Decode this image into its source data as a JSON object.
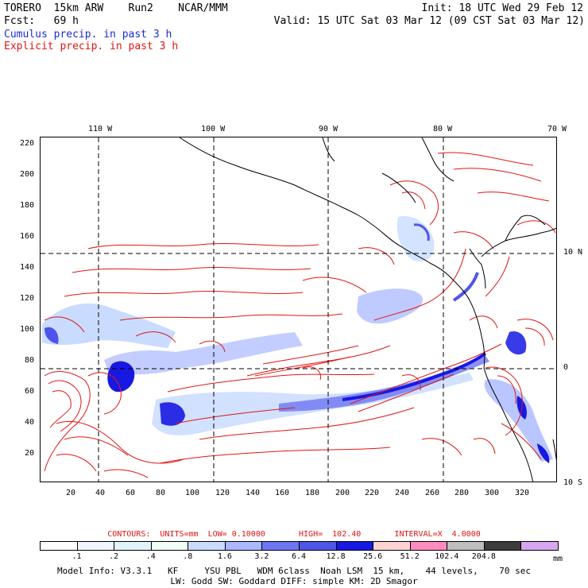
{
  "header": {
    "model": "TORERO  15km ARW    Run2    NCAR/MMM",
    "init": "Init: 18 UTC Wed 29 Feb 12",
    "fcst": "Fcst:   69 h",
    "valid": "Valid: 15 UTC Sat 03 Mar 12 (09 CST Sat 03 Mar 12)",
    "cumulus_label": "Cumulus precip. in past 3 h",
    "explicit_label": "Explicit precip. in past 3 h"
  },
  "colors": {
    "cumulus": "#1d2bd8",
    "explicit": "#e01616",
    "grid": "#000000"
  },
  "axes": {
    "top_lon_labels": [
      "110 W",
      "100 W",
      "90 W",
      "80 W",
      "70 W"
    ],
    "right_lat_labels": [
      "10 N",
      "0",
      "10 S"
    ],
    "left_y_ticks": [
      "220",
      "200",
      "180",
      "160",
      "140",
      "120",
      "100",
      "80",
      "60",
      "40",
      "20"
    ],
    "bottom_x_ticks": [
      "20",
      "40",
      "60",
      "80",
      "100",
      "120",
      "140",
      "160",
      "180",
      "200",
      "220",
      "240",
      "260",
      "280",
      "300",
      "320"
    ]
  },
  "contour_info": "CONTOURS:  UNITS=mm  LOW= 0.10000       HIGH=  102.40       INTERVAL=X  4.0000",
  "scale": {
    "labels": [
      ".1",
      ".2",
      ".4",
      ".8",
      "1.6",
      "3.2",
      "6.4",
      "12.8",
      "25.6",
      "51.2",
      "102.4",
      "204.8"
    ],
    "unit": "mm",
    "colors": [
      "#ffffff",
      "#f2f5ff",
      "#e1f4fb",
      "#f0fff8",
      "#c9dcff",
      "#a9b8ff",
      "#6e75f2",
      "#4d57e6",
      "#1818e3",
      "#ffd3d3",
      "#ff8cbe",
      "#bebebe",
      "#3c3c3c",
      "#d8a6f0"
    ]
  },
  "footer": {
    "line1": "Model Info: V3.3.1   KF     YSU PBL   WDM 6class  Noah LSM  15 km,    44 levels,    70 sec",
    "line2": "LW: Godd SW: Goddard DIFF: simple KM: 2D Smagor"
  }
}
